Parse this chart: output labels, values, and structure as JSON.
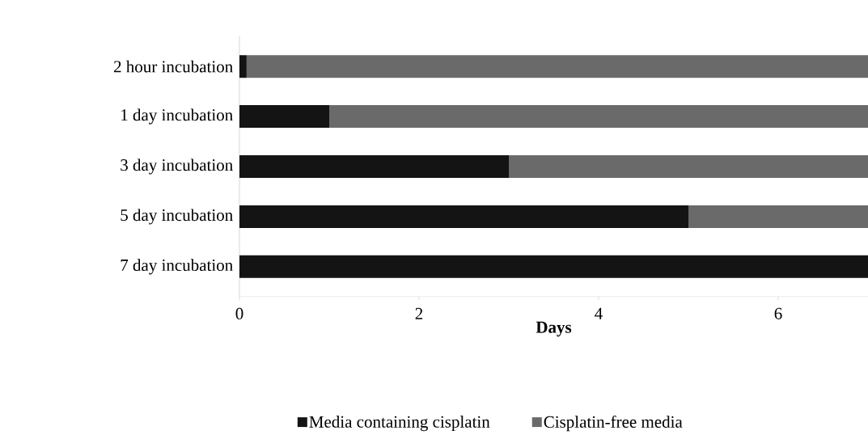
{
  "chart_data": {
    "type": "bar",
    "orientation": "horizontal",
    "stacked": true,
    "xlabel": "Days",
    "categories": [
      "2 hour incubation",
      "1 day incubation",
      "3 day incubation",
      "5 day incubation",
      "7 day incubation"
    ],
    "series": [
      {
        "name": "Media containing cisplatin",
        "color": "#141414",
        "values": [
          0.08,
          1,
          3,
          5,
          7
        ]
      },
      {
        "name": "Cisplatin-free media",
        "color": "#6a6a6a",
        "values": [
          6.92,
          6,
          4,
          2,
          0
        ]
      }
    ],
    "xlim": [
      0,
      7
    ],
    "xticks": [
      0,
      2,
      4,
      6
    ],
    "legend": "bottom",
    "grid": false
  }
}
